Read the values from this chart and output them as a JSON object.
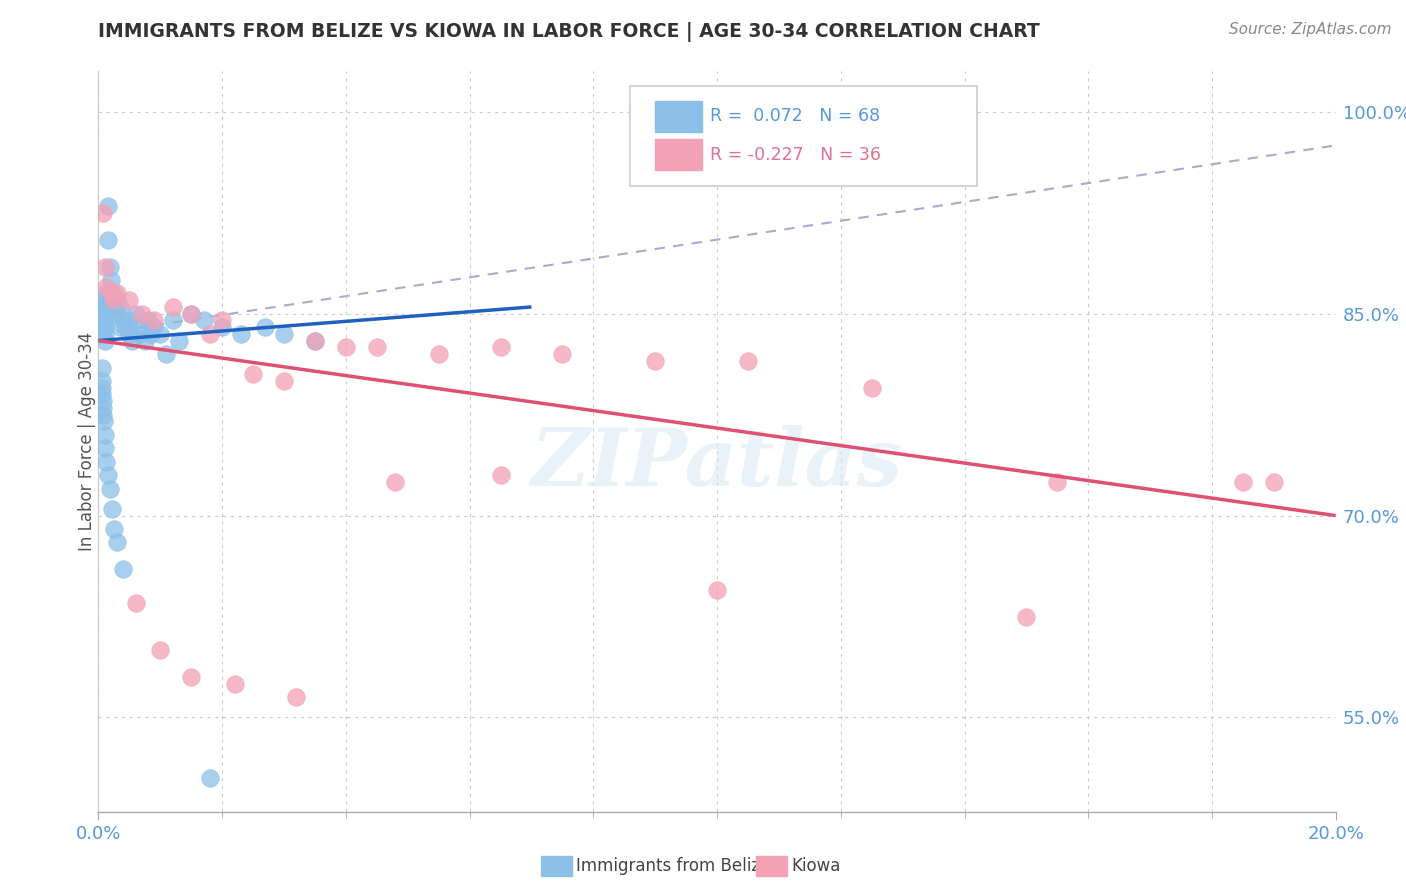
{
  "title": "IMMIGRANTS FROM BELIZE VS KIOWA IN LABOR FORCE | AGE 30-34 CORRELATION CHART",
  "source": "Source: ZipAtlas.com",
  "xmin": 0.0,
  "xmax": 20.0,
  "ymin": 48.0,
  "ymax": 103.0,
  "ylabel_ticks": [
    55.0,
    70.0,
    85.0,
    100.0
  ],
  "belize_color": "#8bbfe8",
  "kiowa_color": "#f4a0b5",
  "belize_line_color": "#2060c0",
  "kiowa_line_color": "#e05070",
  "belize_R": 0.072,
  "belize_N": 68,
  "kiowa_R": -0.227,
  "kiowa_N": 36,
  "belize_x": [
    0.05,
    0.05,
    0.05,
    0.05,
    0.05,
    0.07,
    0.08,
    0.08,
    0.09,
    0.1,
    0.1,
    0.1,
    0.12,
    0.12,
    0.13,
    0.15,
    0.15,
    0.18,
    0.2,
    0.2,
    0.22,
    0.25,
    0.28,
    0.3,
    0.3,
    0.35,
    0.35,
    0.4,
    0.45,
    0.5,
    0.5,
    0.55,
    0.6,
    0.65,
    0.7,
    0.75,
    0.8,
    0.85,
    0.9,
    1.0,
    1.1,
    1.2,
    1.3,
    1.5,
    1.7,
    2.0,
    2.3,
    2.7,
    3.0,
    3.5,
    0.05,
    0.05,
    0.05,
    0.06,
    0.07,
    0.08,
    0.08,
    0.09,
    0.1,
    0.1,
    0.12,
    0.15,
    0.18,
    0.22,
    0.25,
    0.3,
    0.4,
    1.8
  ],
  "belize_y": [
    85.5,
    85.0,
    84.5,
    84.0,
    83.5,
    86.0,
    85.5,
    85.0,
    84.5,
    84.0,
    83.5,
    83.0,
    86.5,
    85.5,
    85.0,
    93.0,
    90.5,
    88.5,
    87.5,
    86.0,
    85.5,
    86.5,
    85.0,
    86.0,
    85.5,
    85.5,
    84.0,
    84.5,
    84.0,
    83.5,
    84.5,
    83.0,
    85.0,
    83.5,
    84.0,
    83.0,
    84.5,
    83.5,
    84.0,
    83.5,
    82.0,
    84.5,
    83.0,
    85.0,
    84.5,
    84.0,
    83.5,
    84.0,
    83.5,
    83.0,
    81.0,
    80.0,
    79.5,
    79.0,
    78.5,
    78.0,
    77.5,
    77.0,
    76.0,
    75.0,
    74.0,
    73.0,
    72.0,
    70.5,
    69.0,
    68.0,
    66.0,
    50.5
  ],
  "kiowa_x": [
    0.08,
    0.1,
    0.12,
    0.2,
    0.25,
    0.3,
    0.5,
    0.7,
    0.9,
    1.2,
    1.5,
    1.8,
    2.0,
    2.5,
    3.0,
    3.5,
    4.0,
    4.5,
    5.5,
    6.5,
    7.5,
    9.0,
    10.5,
    12.5,
    15.5,
    18.5,
    0.6,
    1.0,
    1.5,
    2.2,
    3.2,
    4.8,
    6.5,
    10.0,
    15.0,
    19.0
  ],
  "kiowa_y": [
    92.5,
    88.5,
    87.0,
    86.5,
    86.0,
    86.5,
    86.0,
    85.0,
    84.5,
    85.5,
    85.0,
    83.5,
    84.5,
    80.5,
    80.0,
    83.0,
    82.5,
    82.5,
    82.0,
    82.5,
    82.0,
    81.5,
    81.5,
    79.5,
    72.5,
    72.5,
    63.5,
    60.0,
    58.0,
    57.5,
    56.5,
    72.5,
    73.0,
    64.5,
    62.5,
    72.5
  ],
  "belize_line_x0": 0.0,
  "belize_line_x1": 7.0,
  "belize_line_y0": 83.0,
  "belize_line_y1": 85.5,
  "kiowa_line_x0": 0.0,
  "kiowa_line_x1": 20.0,
  "kiowa_line_y0": 83.0,
  "kiowa_line_y1": 70.0,
  "gray_dash_x0": 0.0,
  "gray_dash_x1": 20.0,
  "gray_dash_y0": 83.5,
  "gray_dash_y1": 97.5,
  "watermark": "ZIPatlas"
}
